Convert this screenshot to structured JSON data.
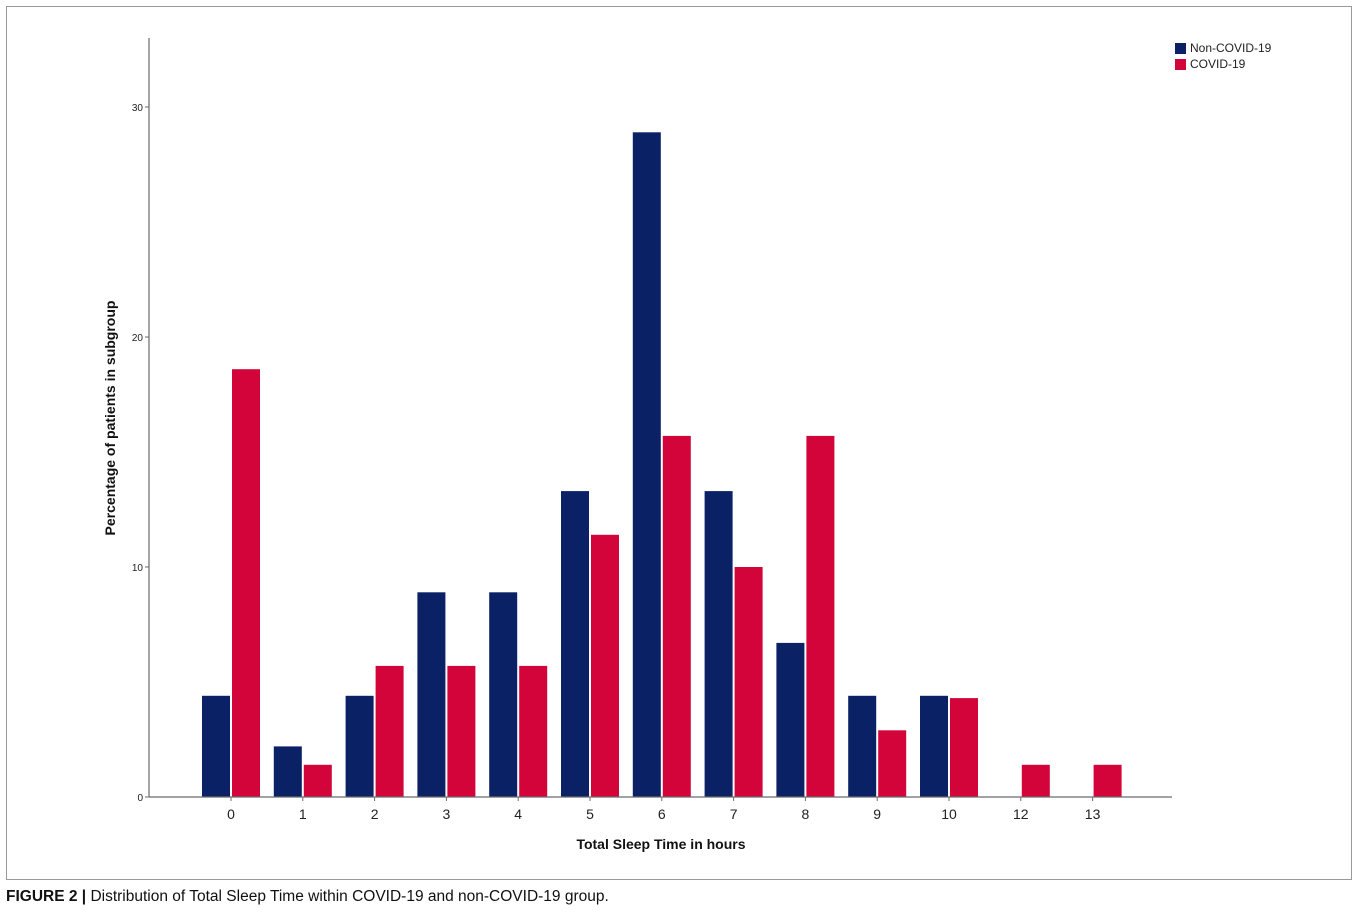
{
  "caption": {
    "label": "FIGURE 2 |",
    "text": "Distribution of Total Sleep Time within COVID-19 and non-COVID-19 group."
  },
  "colors": {
    "non_covid": "#0a2166",
    "covid": "#d2043a",
    "axis": "#6b6b6b"
  },
  "chart_data": {
    "type": "bar",
    "title": "",
    "xlabel": "Total Sleep Time in hours",
    "ylabel": "Percentage of patients in subgroup",
    "categories": [
      "0",
      "1",
      "2",
      "3",
      "4",
      "5",
      "6",
      "7",
      "8",
      "9",
      "10",
      "12",
      "13"
    ],
    "series": [
      {
        "name": "Non-COVID-19",
        "color": "#0a2166",
        "values": [
          4.4,
          2.2,
          4.4,
          8.9,
          8.9,
          13.3,
          28.9,
          13.3,
          6.7,
          4.4,
          4.4,
          0,
          0
        ]
      },
      {
        "name": "COVID-19",
        "color": "#d2043a",
        "values": [
          18.6,
          1.4,
          5.7,
          5.7,
          5.7,
          11.4,
          15.7,
          10.0,
          15.7,
          2.9,
          4.3,
          1.4,
          1.4
        ]
      }
    ],
    "ylim": [
      0,
      33
    ],
    "yticks": [
      0,
      10,
      20,
      30
    ],
    "grid": false,
    "legend": "top-right"
  }
}
